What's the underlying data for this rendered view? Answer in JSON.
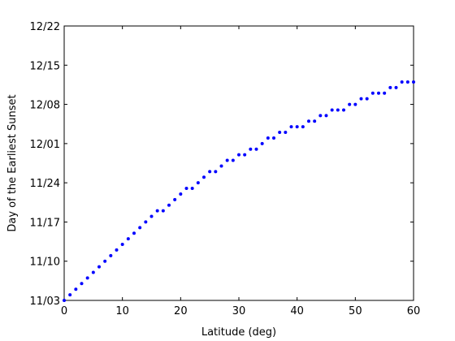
{
  "chart_data": {
    "type": "scatter",
    "xlabel": "Latitude (deg)",
    "ylabel": "Day of the Earliest Sunset",
    "xlim": [
      0,
      60
    ],
    "ylim": [
      "11/03",
      "12/22"
    ],
    "x_ticks": [
      0,
      10,
      20,
      30,
      40,
      50,
      60
    ],
    "y_ticks": [
      "11/03",
      "11/10",
      "11/17",
      "11/24",
      "12/01",
      "12/08",
      "12/15",
      "12/22"
    ],
    "grid": false,
    "marker_color": "#0000ff",
    "points": [
      {
        "x": 0,
        "y": "11/03"
      },
      {
        "x": 1,
        "y": "11/04"
      },
      {
        "x": 2,
        "y": "11/05"
      },
      {
        "x": 3,
        "y": "11/06"
      },
      {
        "x": 4,
        "y": "11/07"
      },
      {
        "x": 5,
        "y": "11/08"
      },
      {
        "x": 6,
        "y": "11/09"
      },
      {
        "x": 7,
        "y": "11/10"
      },
      {
        "x": 8,
        "y": "11/11"
      },
      {
        "x": 9,
        "y": "11/12"
      },
      {
        "x": 10,
        "y": "11/13"
      },
      {
        "x": 11,
        "y": "11/14"
      },
      {
        "x": 12,
        "y": "11/15"
      },
      {
        "x": 13,
        "y": "11/16"
      },
      {
        "x": 14,
        "y": "11/17"
      },
      {
        "x": 15,
        "y": "11/18"
      },
      {
        "x": 16,
        "y": "11/19"
      },
      {
        "x": 17,
        "y": "11/19"
      },
      {
        "x": 18,
        "y": "11/20"
      },
      {
        "x": 19,
        "y": "11/21"
      },
      {
        "x": 20,
        "y": "11/22"
      },
      {
        "x": 21,
        "y": "11/23"
      },
      {
        "x": 22,
        "y": "11/23"
      },
      {
        "x": 23,
        "y": "11/24"
      },
      {
        "x": 24,
        "y": "11/25"
      },
      {
        "x": 25,
        "y": "11/26"
      },
      {
        "x": 26,
        "y": "11/26"
      },
      {
        "x": 27,
        "y": "11/27"
      },
      {
        "x": 28,
        "y": "11/28"
      },
      {
        "x": 29,
        "y": "11/28"
      },
      {
        "x": 30,
        "y": "11/29"
      },
      {
        "x": 31,
        "y": "11/29"
      },
      {
        "x": 32,
        "y": "11/30"
      },
      {
        "x": 33,
        "y": "11/30"
      },
      {
        "x": 34,
        "y": "12/01"
      },
      {
        "x": 35,
        "y": "12/02"
      },
      {
        "x": 36,
        "y": "12/02"
      },
      {
        "x": 37,
        "y": "12/03"
      },
      {
        "x": 38,
        "y": "12/03"
      },
      {
        "x": 39,
        "y": "12/04"
      },
      {
        "x": 40,
        "y": "12/04"
      },
      {
        "x": 41,
        "y": "12/04"
      },
      {
        "x": 42,
        "y": "12/05"
      },
      {
        "x": 43,
        "y": "12/05"
      },
      {
        "x": 44,
        "y": "12/06"
      },
      {
        "x": 45,
        "y": "12/06"
      },
      {
        "x": 46,
        "y": "12/07"
      },
      {
        "x": 47,
        "y": "12/07"
      },
      {
        "x": 48,
        "y": "12/07"
      },
      {
        "x": 49,
        "y": "12/08"
      },
      {
        "x": 50,
        "y": "12/08"
      },
      {
        "x": 51,
        "y": "12/09"
      },
      {
        "x": 52,
        "y": "12/09"
      },
      {
        "x": 53,
        "y": "12/10"
      },
      {
        "x": 54,
        "y": "12/10"
      },
      {
        "x": 55,
        "y": "12/10"
      },
      {
        "x": 56,
        "y": "12/11"
      },
      {
        "x": 57,
        "y": "12/11"
      },
      {
        "x": 58,
        "y": "12/12"
      },
      {
        "x": 59,
        "y": "12/12"
      },
      {
        "x": 60,
        "y": "12/12"
      }
    ]
  }
}
